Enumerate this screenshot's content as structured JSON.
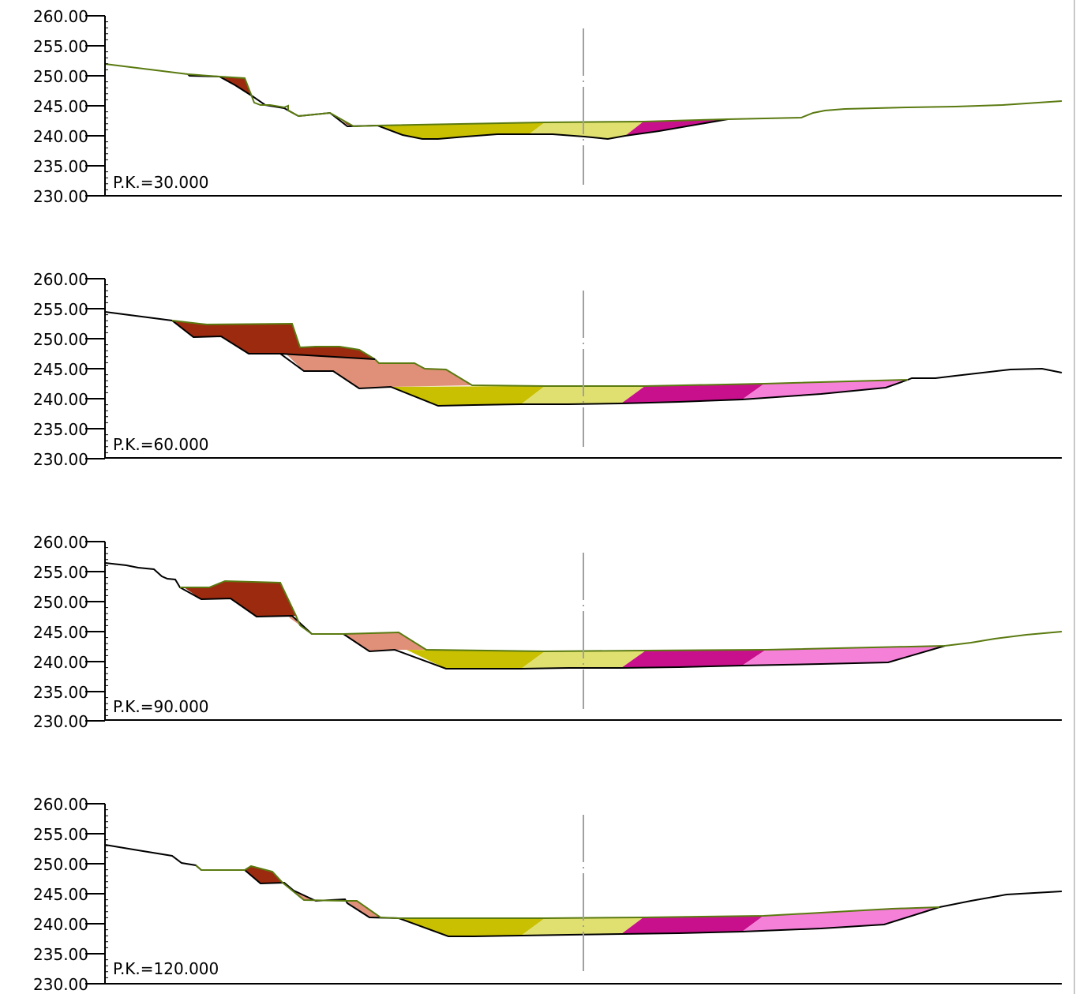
{
  "y_tick_labels": [
    "260.00",
    "255.00",
    "250.00",
    "245.00",
    "240.00",
    "235.00",
    "230.00"
  ],
  "colors": {
    "terrain_line": "#000000",
    "design_line": "#5a7a10",
    "axis_centre": "#a0a0a0",
    "dark_red_fill": "#9b2a0f",
    "salmon_fill": "#e09078",
    "olive_fill": "#c8c000",
    "light_yellow_fill": "#e0e070",
    "magenta_fill": "#c8108c",
    "pink_fill": "#f480d8"
  },
  "sections": [
    {
      "label": "P.K.=30.000"
    },
    {
      "label": "P.K.=60.000"
    },
    {
      "label": "P.K.=90.000"
    },
    {
      "label": "P.K.=120.000"
    }
  ]
}
